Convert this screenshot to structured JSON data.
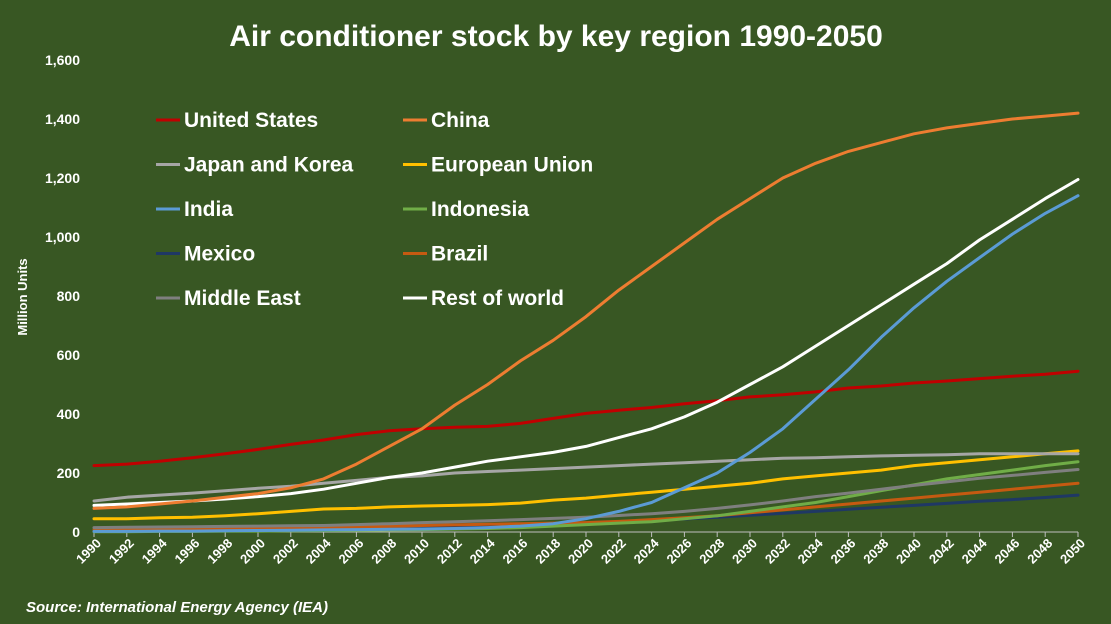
{
  "chart_data": {
    "type": "line",
    "title": "Air conditioner stock by key region 1990-2050",
    "ylabel": "Million Units",
    "xlabel": "",
    "source": "Source: International Energy Agency (IEA)",
    "ylim": [
      0,
      1600
    ],
    "yticks": [
      0,
      200,
      400,
      600,
      800,
      1000,
      1200,
      1400,
      1600
    ],
    "ytick_labels": [
      "0",
      "200",
      "400",
      "600",
      "800",
      "1,000",
      "1,200",
      "1,400",
      "1,600"
    ],
    "xticks": [
      "1990",
      "1992",
      "1994",
      "1996",
      "1998",
      "2000",
      "2002",
      "2004",
      "2006",
      "2008",
      "2010",
      "2012",
      "2014",
      "2016",
      "2018",
      "2020",
      "2022",
      "2024",
      "2026",
      "2028",
      "2030",
      "2032",
      "2034",
      "2036",
      "2038",
      "2040",
      "2042",
      "2044",
      "2046",
      "2048",
      "2050"
    ],
    "x": [
      1990,
      1992,
      1994,
      1996,
      1998,
      2000,
      2002,
      2004,
      2006,
      2008,
      2010,
      2012,
      2014,
      2016,
      2018,
      2020,
      2022,
      2024,
      2026,
      2028,
      2030,
      2032,
      2034,
      2036,
      2038,
      2040,
      2042,
      2044,
      2046,
      2048,
      2050
    ],
    "grid": false,
    "legend_position": "top-left",
    "series": [
      {
        "name": "United States",
        "color": "#C00000",
        "values": [
          225,
          230,
          240,
          252,
          265,
          280,
          297,
          312,
          330,
          343,
          350,
          355,
          358,
          368,
          385,
          402,
          413,
          422,
          435,
          445,
          458,
          465,
          475,
          488,
          495,
          505,
          512,
          520,
          528,
          535,
          545
        ]
      },
      {
        "name": "China",
        "color": "#ED7D31",
        "values": [
          80,
          85,
          95,
          105,
          118,
          130,
          150,
          180,
          230,
          290,
          350,
          430,
          500,
          580,
          650,
          730,
          820,
          900,
          980,
          1060,
          1130,
          1200,
          1250,
          1290,
          1320,
          1350,
          1370,
          1385,
          1400,
          1410,
          1420
        ]
      },
      {
        "name": "Japan and Korea",
        "color": "#A6A6A6",
        "values": [
          105,
          118,
          125,
          132,
          140,
          148,
          155,
          165,
          175,
          185,
          190,
          200,
          205,
          210,
          215,
          220,
          225,
          230,
          235,
          240,
          245,
          250,
          252,
          255,
          258,
          260,
          262,
          265,
          265,
          265,
          265
        ]
      },
      {
        "name": "European Union",
        "color": "#FFC000",
        "values": [
          45,
          45,
          48,
          50,
          55,
          62,
          70,
          78,
          80,
          85,
          88,
          90,
          93,
          98,
          108,
          115,
          125,
          135,
          145,
          155,
          165,
          180,
          190,
          200,
          210,
          225,
          235,
          245,
          255,
          265,
          275
        ]
      },
      {
        "name": "India",
        "color": "#5B9BD5",
        "values": [
          2,
          2,
          3,
          3,
          4,
          5,
          6,
          7,
          8,
          9,
          10,
          12,
          15,
          20,
          28,
          45,
          70,
          100,
          150,
          200,
          270,
          350,
          450,
          550,
          660,
          760,
          850,
          930,
          1010,
          1080,
          1140
        ]
      },
      {
        "name": "Indonesia",
        "color": "#70AD47",
        "values": [
          1,
          1,
          2,
          2,
          3,
          3,
          4,
          5,
          6,
          7,
          8,
          10,
          12,
          15,
          20,
          25,
          30,
          35,
          45,
          55,
          70,
          85,
          100,
          120,
          140,
          160,
          180,
          195,
          210,
          225,
          238
        ]
      },
      {
        "name": "Mexico",
        "color": "#1F3864",
        "values": [
          5,
          6,
          7,
          8,
          9,
          10,
          11,
          12,
          13,
          14,
          15,
          17,
          19,
          21,
          24,
          28,
          32,
          38,
          44,
          50,
          57,
          63,
          70,
          77,
          84,
          90,
          97,
          104,
          110,
          117,
          125
        ]
      },
      {
        "name": "Brazil",
        "color": "#C55A11",
        "values": [
          8,
          9,
          10,
          11,
          12,
          13,
          14,
          15,
          17,
          19,
          22,
          24,
          26,
          28,
          30,
          32,
          36,
          42,
          48,
          55,
          65,
          75,
          85,
          95,
          105,
          115,
          125,
          135,
          145,
          155,
          165
        ]
      },
      {
        "name": "Middle East",
        "color": "#7F7F7F",
        "values": [
          15,
          16,
          17,
          18,
          19,
          20,
          21,
          22,
          25,
          28,
          32,
          35,
          38,
          42,
          46,
          50,
          56,
          62,
          70,
          80,
          92,
          105,
          120,
          132,
          145,
          158,
          170,
          182,
          192,
          202,
          212
        ]
      },
      {
        "name": "Rest of world",
        "color": "#FFFFFF",
        "values": [
          90,
          95,
          100,
          105,
          112,
          120,
          130,
          145,
          165,
          185,
          200,
          220,
          240,
          255,
          270,
          290,
          320,
          350,
          390,
          440,
          500,
          560,
          630,
          700,
          770,
          840,
          910,
          990,
          1060,
          1130,
          1195
        ]
      }
    ]
  }
}
